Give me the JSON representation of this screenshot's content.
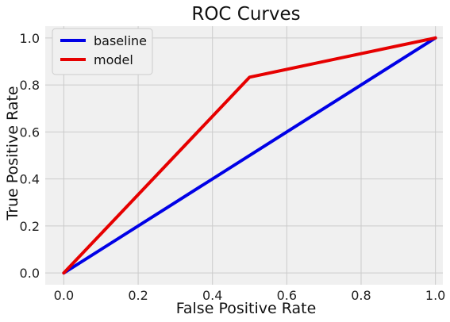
{
  "chart_data": {
    "type": "line",
    "title": "ROC Curves",
    "xlabel": "False Positive Rate",
    "ylabel": "True Positive Rate",
    "xlim": [
      -0.05,
      1.02
    ],
    "ylim": [
      -0.05,
      1.05
    ],
    "xticks": [
      "0.0",
      "0.2",
      "0.4",
      "0.6",
      "0.8",
      "1.0"
    ],
    "yticks": [
      "0.0",
      "0.2",
      "0.4",
      "0.6",
      "0.8",
      "1.0"
    ],
    "grid": true,
    "legend_position": "top-left",
    "background_color": "#f0f0f0",
    "grid_color": "#cbcbcb",
    "series": [
      {
        "name": "baseline",
        "color": "#0000e6",
        "x": [
          0.0,
          1.0
        ],
        "y": [
          0.0,
          1.0
        ]
      },
      {
        "name": "model",
        "color": "#e60000",
        "x": [
          0.0,
          0.5,
          1.0
        ],
        "y": [
          0.0,
          0.833,
          1.0
        ]
      }
    ]
  }
}
